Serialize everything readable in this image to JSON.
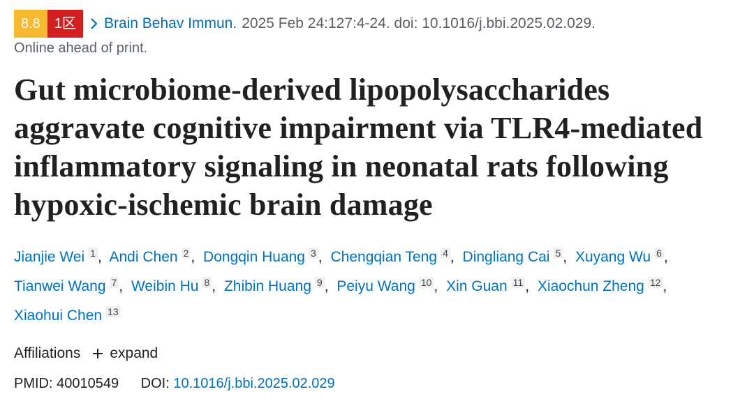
{
  "badges": {
    "impact_factor": "8.8",
    "zone": "1区"
  },
  "citation": {
    "journal": "Brain Behav Immun.",
    "details": "2025 Feb 24:127:4-24. doi: 10.1016/j.bbi.2025.02.029.",
    "status": "Online ahead of print."
  },
  "title": "Gut microbiome-derived lipopolysaccharides aggravate cognitive impairment via TLR4-mediated inflammatory signaling in neonatal rats following hypoxic-ischemic brain damage",
  "authors": [
    {
      "name": "Jianjie Wei",
      "affiliation": 1
    },
    {
      "name": "Andi Chen",
      "affiliation": 2
    },
    {
      "name": "Dongqin Huang",
      "affiliation": 3
    },
    {
      "name": "Chengqian Teng",
      "affiliation": 4
    },
    {
      "name": "Dingliang Cai",
      "affiliation": 5
    },
    {
      "name": "Xuyang Wu",
      "affiliation": 6
    },
    {
      "name": "Tianwei Wang",
      "affiliation": 7
    },
    {
      "name": "Weibin Hu",
      "affiliation": 8
    },
    {
      "name": "Zhibin Huang",
      "affiliation": 9
    },
    {
      "name": "Peiyu Wang",
      "affiliation": 10
    },
    {
      "name": "Xin Guan",
      "affiliation": 11
    },
    {
      "name": "Xiaochun Zheng",
      "affiliation": 12
    },
    {
      "name": "Xiaohui Chen",
      "affiliation": 13
    }
  ],
  "affiliations": {
    "label": "Affiliations",
    "toggle": "expand"
  },
  "identifiers": {
    "pmid_label": "PMID:",
    "pmid": "40010549",
    "doi_label": "DOI:",
    "doi": "10.1016/j.bbi.2025.02.029"
  }
}
